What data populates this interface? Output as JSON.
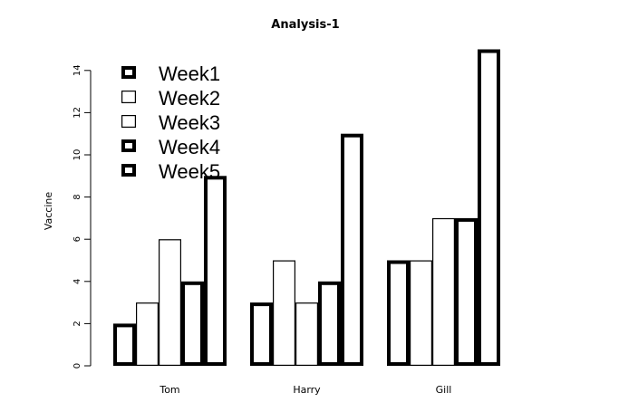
{
  "chart_data": {
    "type": "bar",
    "title": "Analysis-1",
    "xlabel": "",
    "ylabel": "Vaccine",
    "categories": [
      "Tom",
      "Harry",
      "Gill"
    ],
    "series": [
      {
        "name": "Week1",
        "values": [
          2,
          3,
          5
        ]
      },
      {
        "name": "Week2",
        "values": [
          3,
          5,
          5
        ]
      },
      {
        "name": "Week3",
        "values": [
          6,
          3,
          7
        ]
      },
      {
        "name": "Week4",
        "values": [
          4,
          4,
          7
        ]
      },
      {
        "name": "Week5",
        "values": [
          9,
          11,
          15
        ]
      }
    ],
    "ylim": [
      0,
      15
    ],
    "yticks": [
      0,
      2,
      4,
      6,
      8,
      10,
      12,
      14
    ],
    "grid": false,
    "legend_position": "top-left",
    "bar_fill": "#ffffff",
    "bar_stroke": "#000000",
    "series_stroke_weight": [
      "thick",
      "thin",
      "thin",
      "thick",
      "thick"
    ]
  }
}
